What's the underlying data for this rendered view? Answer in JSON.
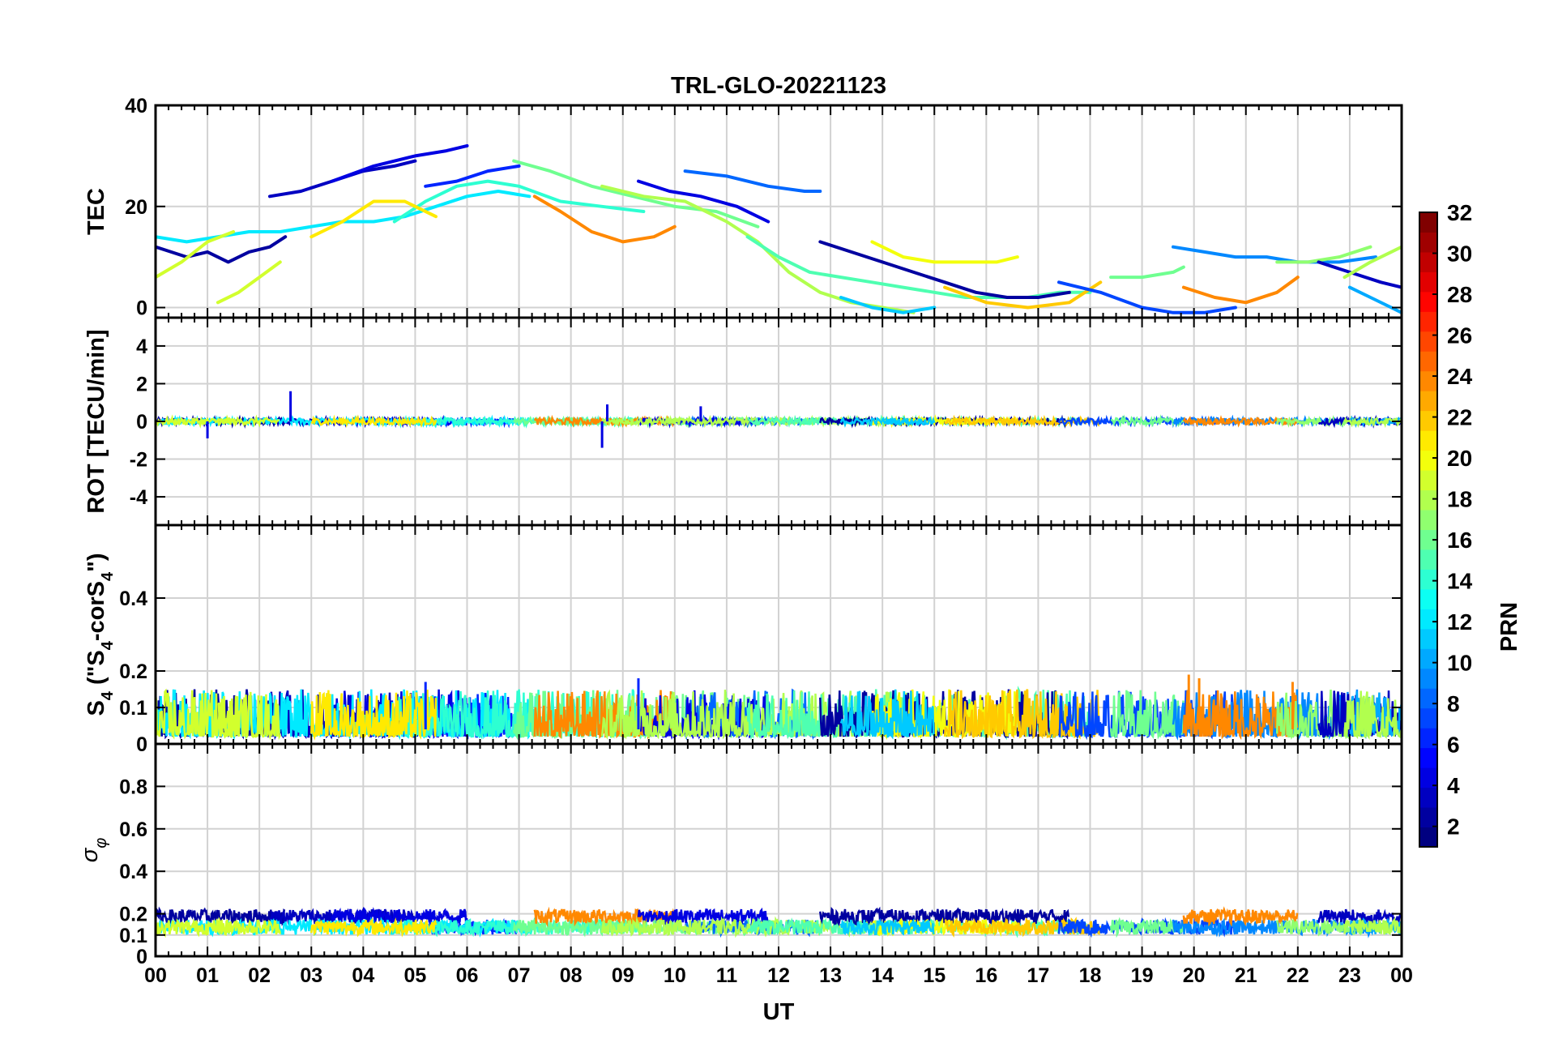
{
  "chart_data": {
    "type": "line",
    "title": "TRL-GLO-20221123",
    "xlabel": "UT",
    "x_tick_labels": [
      "00",
      "01",
      "02",
      "03",
      "04",
      "05",
      "06",
      "07",
      "08",
      "09",
      "10",
      "11",
      "12",
      "13",
      "14",
      "15",
      "16",
      "17",
      "18",
      "19",
      "20",
      "21",
      "22",
      "23",
      "00"
    ],
    "xlim": [
      0,
      24
    ],
    "panels": [
      {
        "name": "tec",
        "ylabel": "TEC",
        "ylim": [
          -2,
          40
        ],
        "y_ticks": [
          0,
          20,
          40
        ],
        "y_tick_labels": [
          "0",
          "20",
          "40"
        ],
        "series": [
          {
            "prn": 2,
            "x": [
              0,
              0.3,
              0.6,
              1.0,
              1.4,
              1.8,
              2.2,
              2.5
            ],
            "y": [
              12,
              11,
              10,
              11,
              9,
              11,
              12,
              14
            ]
          },
          {
            "prn": 3,
            "x": [
              2.2,
              2.8,
              3.4,
              4.0,
              4.6,
              5.0
            ],
            "y": [
              22,
              23,
              25,
              27,
              28,
              29
            ]
          },
          {
            "prn": 4,
            "x": [
              3.4,
              4.2,
              5.0,
              5.6,
              6.0
            ],
            "y": [
              25,
              28,
              30,
              31,
              32
            ]
          },
          {
            "prn": 6,
            "x": [
              5.2,
              5.8,
              6.4,
              7.0
            ],
            "y": [
              24,
              25,
              27,
              28
            ]
          },
          {
            "prn": 12,
            "x": [
              0,
              0.6,
              1.2,
              1.8,
              2.4,
              3.0,
              3.6,
              4.2,
              4.8,
              5.4,
              6.0,
              6.6,
              7.2
            ],
            "y": [
              14,
              13,
              14,
              15,
              15,
              16,
              17,
              17,
              18,
              20,
              22,
              23,
              22
            ]
          },
          {
            "prn": 14,
            "x": [
              4.6,
              5.2,
              5.8,
              6.4,
              7.0,
              7.8,
              8.6,
              9.4
            ],
            "y": [
              17,
              21,
              24,
              25,
              24,
              21,
              20,
              19
            ]
          },
          {
            "prn": 16,
            "x": [
              6.9,
              7.6,
              8.4,
              9.2,
              10.0,
              10.8,
              11.6
            ],
            "y": [
              29,
              27,
              24,
              22,
              20,
              19,
              16
            ]
          },
          {
            "prn": 19,
            "x": [
              0,
              0.5,
              1.0,
              1.5
            ],
            "y": [
              6,
              9,
              13,
              15
            ]
          },
          {
            "prn": 19,
            "x": [
              1.2,
              1.6,
              2.0,
              2.4
            ],
            "y": [
              1,
              3,
              6,
              9
            ]
          },
          {
            "prn": 21,
            "x": [
              3.0,
              3.6,
              4.2,
              4.8,
              5.4
            ],
            "y": [
              14,
              17,
              21,
              21,
              18
            ]
          },
          {
            "prn": 24,
            "x": [
              7.3,
              7.8,
              8.4,
              9.0,
              9.6,
              10.0
            ],
            "y": [
              22,
              19,
              15,
              13,
              14,
              16
            ]
          },
          {
            "prn": 8,
            "x": [
              10.2,
              11.0,
              11.8,
              12.5,
              12.8
            ],
            "y": [
              27,
              26,
              24,
              23,
              23
            ]
          },
          {
            "prn": 4,
            "x": [
              9.3,
              9.9,
              10.5,
              11.2,
              11.8
            ],
            "y": [
              25,
              23,
              22,
              20,
              17
            ]
          },
          {
            "prn": 18,
            "x": [
              8.6,
              9.4,
              10.2,
              11.0,
              11.6,
              12.2,
              12.8,
              13.4,
              14.0,
              14.6
            ],
            "y": [
              24,
              22,
              21,
              17,
              13,
              7,
              3,
              1,
              0,
              -1
            ]
          },
          {
            "prn": 15,
            "x": [
              11.4,
              12.0,
              12.6,
              13.2,
              13.8,
              14.4,
              15.0,
              15.6,
              16.2,
              16.8,
              17.4,
              18.0
            ],
            "y": [
              14,
              10,
              7,
              6,
              5,
              4,
              3,
              2,
              2,
              2,
              3,
              3
            ]
          },
          {
            "prn": 2,
            "x": [
              12.8,
              13.4,
              14.0,
              14.6,
              15.2,
              15.8,
              16.4,
              17.0,
              17.6
            ],
            "y": [
              13,
              11,
              9,
              7,
              5,
              3,
              2,
              2,
              3
            ]
          },
          {
            "prn": 20,
            "x": [
              13.8,
              14.4,
              15.0,
              15.6,
              16.2,
              16.6
            ],
            "y": [
              13,
              10,
              9,
              9,
              9,
              10
            ]
          },
          {
            "prn": 11,
            "x": [
              13.2,
              13.8,
              14.4,
              15.0
            ],
            "y": [
              2,
              0,
              -1,
              0
            ]
          },
          {
            "prn": 22,
            "x": [
              15.2,
              16.0,
              16.8,
              17.6,
              18.2
            ],
            "y": [
              4,
              1,
              0,
              1,
              5
            ]
          },
          {
            "prn": 7,
            "x": [
              17.4,
              18.2,
              19.0,
              19.6,
              20.2,
              20.8
            ],
            "y": [
              5,
              3,
              0,
              -1,
              -1,
              0
            ]
          },
          {
            "prn": 16,
            "x": [
              18.4,
              19.0,
              19.6,
              19.8
            ],
            "y": [
              6,
              6,
              7,
              8
            ]
          },
          {
            "prn": 9,
            "x": [
              19.6,
              20.2,
              20.8,
              21.4,
              22.0,
              22.8,
              23.5
            ],
            "y": [
              12,
              11,
              10,
              10,
              9,
              9,
              10
            ]
          },
          {
            "prn": 24,
            "x": [
              19.8,
              20.4,
              21.0,
              21.6,
              22.0
            ],
            "y": [
              4,
              2,
              1,
              3,
              6
            ]
          },
          {
            "prn": 17,
            "x": [
              21.6,
              22.2,
              22.8,
              23.4
            ],
            "y": [
              9,
              9,
              10,
              12
            ]
          },
          {
            "prn": 3,
            "x": [
              22.4,
              23.0,
              23.6,
              24.0
            ],
            "y": [
              9,
              7,
              5,
              4
            ]
          },
          {
            "prn": 10,
            "x": [
              23.0,
              23.4,
              23.8,
              24.0
            ],
            "y": [
              4,
              2,
              0,
              -1
            ]
          },
          {
            "prn": 18,
            "x": [
              22.9,
              23.4,
              23.8,
              24.0
            ],
            "y": [
              6,
              9,
              11,
              12
            ]
          }
        ]
      },
      {
        "name": "rot",
        "ylabel": "ROT [TECU/min]",
        "ylim": [
          -5.5,
          5.5
        ],
        "y_ticks": [
          -4,
          -2,
          0,
          2,
          4
        ],
        "y_tick_labels": [
          "-4",
          "-2",
          "0",
          "2",
          "4"
        ],
        "mean_level": 0,
        "noise_amplitude": 0.35,
        "spikes": [
          {
            "x": 2.6,
            "y": 1.6
          },
          {
            "x": 8.6,
            "y": -1.4
          },
          {
            "x": 8.7,
            "y": 0.9
          },
          {
            "x": 1.0,
            "y": -0.9
          },
          {
            "x": 10.5,
            "y": 0.8
          }
        ]
      },
      {
        "name": "s4",
        "ylabel": "S4 (\"S4-corS4\")",
        "ylim": [
          0,
          0.6
        ],
        "y_ticks": [
          0,
          0.1,
          0.2,
          0.4
        ],
        "y_tick_labels": [
          "0",
          "0.1",
          "0.2",
          "0.4"
        ],
        "typical_range": [
          0,
          0.15
        ],
        "peaks": [
          {
            "x": 5.2,
            "y": 0.17
          },
          {
            "x": 9.3,
            "y": 0.18
          },
          {
            "x": 19.9,
            "y": 0.19
          },
          {
            "x": 20.1,
            "y": 0.18
          },
          {
            "x": 21.9,
            "y": 0.17
          }
        ]
      },
      {
        "name": "sigma_phi",
        "ylabel": "σφ",
        "ylim": [
          0,
          1.0
        ],
        "y_ticks": [
          0,
          0.1,
          0.2,
          0.4,
          0.6,
          0.8
        ],
        "y_tick_labels": [
          "0",
          "0.1",
          "0.2",
          "0.4",
          "0.6",
          "0.8"
        ],
        "typical_range": [
          0.1,
          0.28
        ]
      }
    ],
    "colorbar": {
      "label": "PRN",
      "min": 1,
      "max": 32,
      "tick_labels": [
        "2",
        "4",
        "6",
        "8",
        "10",
        "12",
        "14",
        "16",
        "18",
        "20",
        "22",
        "24",
        "26",
        "28",
        "30",
        "32"
      ],
      "colormap": "jet"
    }
  }
}
